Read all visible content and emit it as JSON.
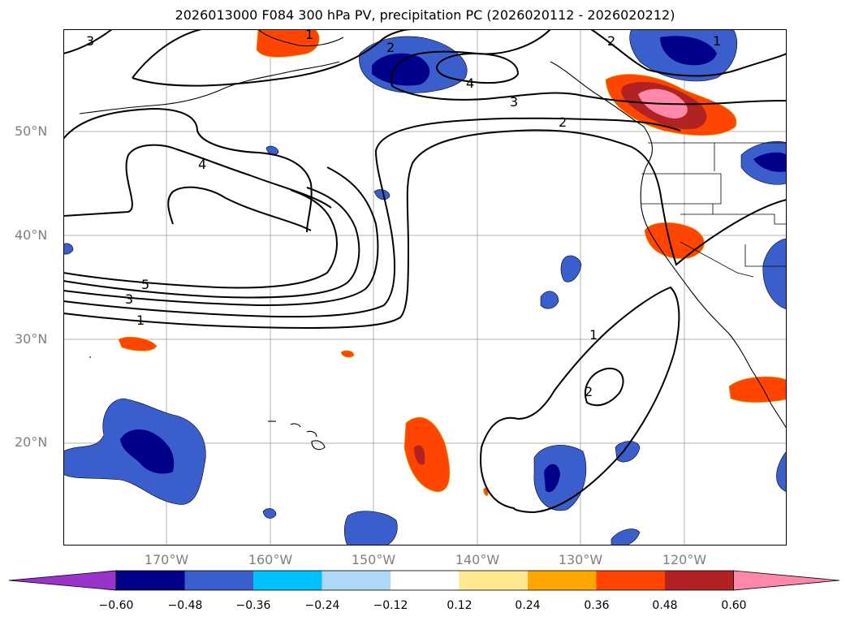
{
  "title": "2026013000 F084 300 hPa PV, precipitation PC (2026020112 - 2026020212)",
  "map": {
    "lat_labels": [
      "50°N",
      "40°N",
      "30°N",
      "20°N"
    ],
    "lon_labels": [
      "170°W",
      "160°W",
      "150°W",
      "140°W",
      "130°W",
      "120°W"
    ],
    "contour_labels": [
      "3",
      "1",
      "2",
      "4",
      "3",
      "2",
      "4",
      "5",
      "3",
      "1",
      "1",
      "2",
      "1"
    ]
  },
  "colorbar": {
    "ticks": [
      "−0.60",
      "−0.48",
      "−0.36",
      "−0.24",
      "−0.12",
      "0.12",
      "0.24",
      "0.36",
      "0.48",
      "0.60"
    ],
    "colors": [
      "#9933cc",
      "#00008b",
      "#3a5fcd",
      "#00bfff",
      "#add8f7",
      "#ffffff",
      "#ffe890",
      "#ffa500",
      "#ff4500",
      "#b22222",
      "#ff88aa"
    ]
  }
}
